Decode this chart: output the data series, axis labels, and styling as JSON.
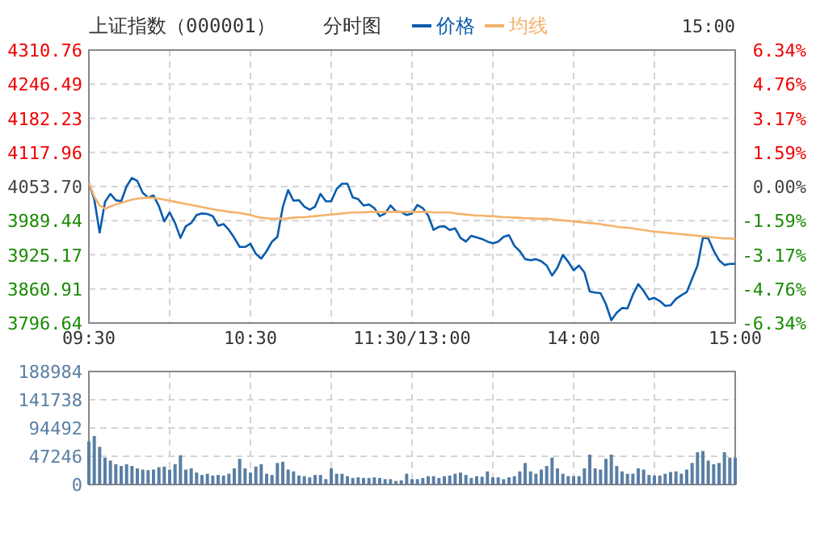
{
  "chart_data": [
    {
      "type": "line",
      "title": "上证指数（000001）",
      "subtitle": "分时图",
      "annotations": [
        "15:00"
      ],
      "legend": "top",
      "grid": true,
      "categories": [
        "09:30",
        null,
        null,
        null,
        null,
        null,
        null,
        null,
        null,
        null,
        null,
        null,
        null,
        null,
        null,
        null,
        null,
        null,
        null,
        null,
        null,
        null,
        null,
        null,
        null,
        null,
        null,
        null,
        null,
        null,
        "10:30",
        null,
        null,
        null,
        null,
        null,
        null,
        null,
        null,
        null,
        null,
        null,
        null,
        null,
        null,
        null,
        null,
        null,
        null,
        null,
        null,
        null,
        null,
        null,
        null,
        null,
        null,
        null,
        null,
        null,
        "11:30/13:00",
        null,
        null,
        null,
        null,
        null,
        null,
        null,
        null,
        null,
        null,
        null,
        null,
        null,
        null,
        null,
        null,
        null,
        null,
        null,
        null,
        null,
        null,
        null,
        null,
        null,
        null,
        null,
        null,
        null,
        "14:00",
        null,
        null,
        null,
        null,
        null,
        null,
        null,
        null,
        null,
        null,
        null,
        null,
        null,
        null,
        null,
        null,
        null,
        null,
        null,
        null,
        null,
        null,
        null,
        null,
        null,
        null,
        null,
        null,
        null,
        "15:00"
      ],
      "ylim": [
        3796.64,
        4310.76
      ],
      "yticks": [
        3796.64,
        3860.91,
        3925.17,
        3989.44,
        {
          "value": 4053.7,
          "label": "4053.70"
        },
        4117.96,
        4182.23,
        4246.49,
        4310.76
      ],
      "y2lim": [
        -6.34,
        6.34
      ],
      "y2ticks": [
        {
          "value": -6.34,
          "label": "-6.34%"
        },
        {
          "value": -4.76,
          "label": "-4.76%"
        },
        {
          "value": -3.17,
          "label": "-3.17%"
        },
        {
          "value": -1.59,
          "label": "-1.59%"
        },
        {
          "value": 0,
          "label": "0.00%"
        },
        {
          "value": 1.59,
          "label": "1.59%"
        },
        {
          "value": 3.17,
          "label": "3.17%"
        },
        {
          "value": 4.76,
          "label": "4.76%"
        },
        {
          "value": 6.34,
          "label": "6.34%"
        }
      ],
      "series": [
        {
          "name": "价格",
          "color": "#0a5cad",
          "values": [
            4061,
            4030,
            3967,
            4025,
            4040,
            4028,
            4026,
            4054,
            4070,
            4064,
            4042,
            4033,
            4037,
            4017,
            3988,
            4005,
            3985,
            3957,
            3979,
            3985,
            4000,
            4003,
            4002,
            3998,
            3980,
            3983,
            3972,
            3957,
            3940,
            3940,
            3946,
            3927,
            3918,
            3932,
            3950,
            3959,
            4015,
            4047,
            4027,
            4028,
            4016,
            4010,
            4016,
            4040,
            4026,
            4026,
            4049,
            4059,
            4059,
            4033,
            4030,
            4018,
            4020,
            4013,
            3998,
            4003,
            4018,
            4007,
            4006,
            4000,
            4003,
            4019,
            4013,
            3999,
            3972,
            3978,
            3979,
            3972,
            3975,
            3957,
            3950,
            3961,
            3958,
            3955,
            3950,
            3947,
            3950,
            3959,
            3962,
            3942,
            3932,
            3917,
            3915,
            3917,
            3913,
            3905,
            3886,
            3901,
            3925,
            3912,
            3896,
            3905,
            3892,
            3856,
            3854,
            3853,
            3832,
            3802,
            3816,
            3825,
            3824,
            3850,
            3870,
            3857,
            3841,
            3844,
            3838,
            3829,
            3830,
            3842,
            3849,
            3855,
            3880,
            3905,
            3957,
            3956,
            3933,
            3915,
            3906,
            3908,
            3908
          ]
        },
        {
          "name": "均线",
          "color": "#f5b26b",
          "values": [
            4061,
            4035,
            4018,
            4012,
            4016,
            4020,
            4023,
            4026,
            4029,
            4031,
            4032,
            4033,
            4032,
            4031,
            4029,
            4027,
            4025,
            4023,
            4021,
            4019,
            4017,
            4015,
            4013,
            4011,
            4009,
            4008,
            4006,
            4005,
            4004,
            4002,
            4000,
            3997,
            3995,
            3994,
            3993,
            3993,
            3993,
            3994,
            3995,
            3996,
            3996,
            3997,
            3998,
            3999,
            4000,
            4001,
            4002,
            4003,
            4004,
            4005,
            4005,
            4005,
            4006,
            4006,
            4006,
            4006,
            4006,
            4006,
            4006,
            4006,
            4006,
            4006,
            4006,
            4006,
            4005,
            4005,
            4005,
            4005,
            4003,
            4002,
            4001,
            4000,
            3999,
            3999,
            3998,
            3998,
            3997,
            3996,
            3996,
            3995,
            3995,
            3994,
            3994,
            3993,
            3993,
            3993,
            3992,
            3991,
            3990,
            3989,
            3988,
            3987,
            3986,
            3985,
            3984,
            3983,
            3981,
            3980,
            3978,
            3977,
            3976,
            3975,
            3973,
            3972,
            3970,
            3969,
            3968,
            3967,
            3966,
            3965,
            3964,
            3963,
            3962,
            3961,
            3960,
            3959,
            3958,
            3957,
            3956,
            3956,
            3955
          ]
        }
      ]
    },
    {
      "type": "bar",
      "color": "#5a7fa3",
      "grid": true,
      "tick_labels": "y",
      "categories": [
        null,
        null,
        null,
        null,
        null,
        null,
        null,
        null,
        null,
        null,
        null,
        null,
        null,
        null,
        null,
        null,
        null,
        null,
        null,
        null,
        null,
        null,
        null,
        null,
        null,
        null,
        null,
        null,
        null,
        null,
        null,
        null,
        null,
        null,
        null,
        null,
        null,
        null,
        null,
        null,
        null,
        null,
        null,
        null,
        null,
        null,
        null,
        null,
        null,
        null,
        null,
        null,
        null,
        null,
        null,
        null,
        null,
        null,
        null,
        null,
        null,
        null,
        null,
        null,
        null,
        null,
        null,
        null,
        null,
        null,
        null,
        null,
        null,
        null,
        null,
        null,
        null,
        null,
        null,
        null,
        null,
        null,
        null,
        null,
        null,
        null,
        null,
        null,
        null,
        null,
        null,
        null,
        null,
        null,
        null,
        null,
        null,
        null,
        null,
        null,
        null,
        null,
        null,
        null,
        null,
        null,
        null,
        null,
        null,
        null,
        null,
        null,
        null,
        null,
        null,
        null,
        null,
        null,
        null,
        null,
        null
      ],
      "ylim": [
        0,
        188984
      ],
      "yticks": [
        0,
        47246,
        94492,
        141738,
        188984
      ],
      "values": [
        72000,
        81000,
        63000,
        45000,
        40000,
        34000,
        31000,
        34000,
        31000,
        27000,
        25000,
        24000,
        25000,
        29000,
        30000,
        25000,
        34000,
        49000,
        25000,
        27000,
        20000,
        16000,
        18000,
        15000,
        16000,
        15000,
        18000,
        27000,
        43000,
        27000,
        20000,
        30000,
        34000,
        18000,
        16000,
        36000,
        38000,
        25000,
        22000,
        15000,
        14000,
        12000,
        16000,
        16000,
        9000,
        27000,
        18000,
        18000,
        14000,
        11000,
        12000,
        11000,
        11000,
        12000,
        11000,
        9000,
        9000,
        6000,
        7000,
        18000,
        9000,
        9000,
        11000,
        14000,
        14000,
        11000,
        14000,
        15000,
        18000,
        20000,
        16000,
        11000,
        14000,
        13000,
        22000,
        12000,
        12000,
        9000,
        12000,
        14000,
        22000,
        36000,
        22000,
        18000,
        25000,
        31000,
        45000,
        27000,
        18000,
        14000,
        14000,
        14000,
        27000,
        50000,
        27000,
        25000,
        43000,
        50000,
        31000,
        22000,
        18000,
        18000,
        27000,
        25000,
        16000,
        15000,
        15000,
        18000,
        21000,
        22000,
        18000,
        25000,
        36000,
        54000,
        56000,
        40000,
        34000,
        36000,
        54000,
        45000,
        45000
      ]
    }
  ]
}
